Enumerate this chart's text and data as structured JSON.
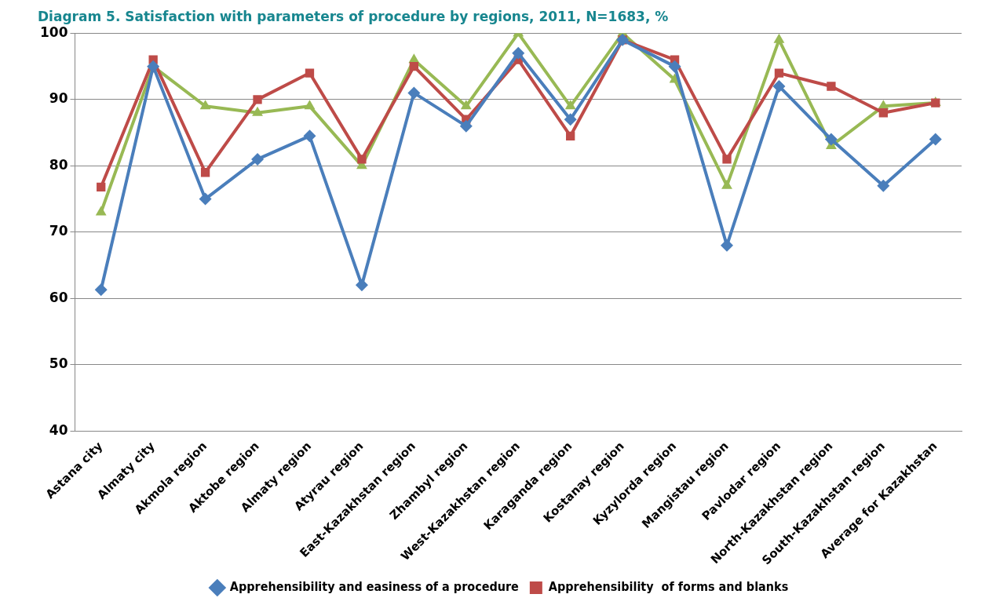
{
  "chart_data": {
    "type": "line",
    "title": "Diagram 5. Satisfaction with parameters of procedure by regions, 2011, N=1683, %",
    "categories": [
      "Astana city",
      "Almaty city",
      "Akmola region",
      "Aktobe region",
      "Almaty region",
      "Atyrau region",
      "East-Kazakhstan region",
      "Zhambyl region",
      "West-Kazakhstan region",
      "Karaganda region",
      "Kostanay region",
      "Kyzylorda region",
      "Mangistau region",
      "Pavlodar region",
      "North-Kazakhstan region",
      "South-Kazakhstan region",
      "Average for Kazakhstan"
    ],
    "series": [
      {
        "name": "Apprehensibility and easiness of a procedure",
        "color": "#4a7ebb",
        "marker": "diamond",
        "values": [
          61.3,
          95,
          75,
          81,
          84.5,
          62,
          91,
          86,
          97,
          87,
          99,
          95,
          68,
          92,
          84,
          77,
          84
        ]
      },
      {
        "name": "Apprehensibility  of forms and blanks",
        "color": "#be4b48",
        "marker": "square",
        "values": [
          76.8,
          96,
          79,
          90,
          94,
          81,
          95,
          87,
          96,
          84.5,
          99,
          96,
          81,
          94,
          92,
          88,
          89.5
        ]
      },
      {
        "color": "#98b954",
        "marker": "triangle",
        "values": [
          73,
          95,
          89,
          88,
          89,
          80,
          96,
          89,
          100,
          89,
          100,
          93,
          77,
          99,
          83,
          89,
          89.5
        ]
      }
    ],
    "ylim": [
      40,
      100
    ],
    "yticks": [
      40,
      50,
      60,
      70,
      80,
      90,
      100
    ],
    "grid": "y",
    "legend": "bottom",
    "line_style": "solid"
  }
}
